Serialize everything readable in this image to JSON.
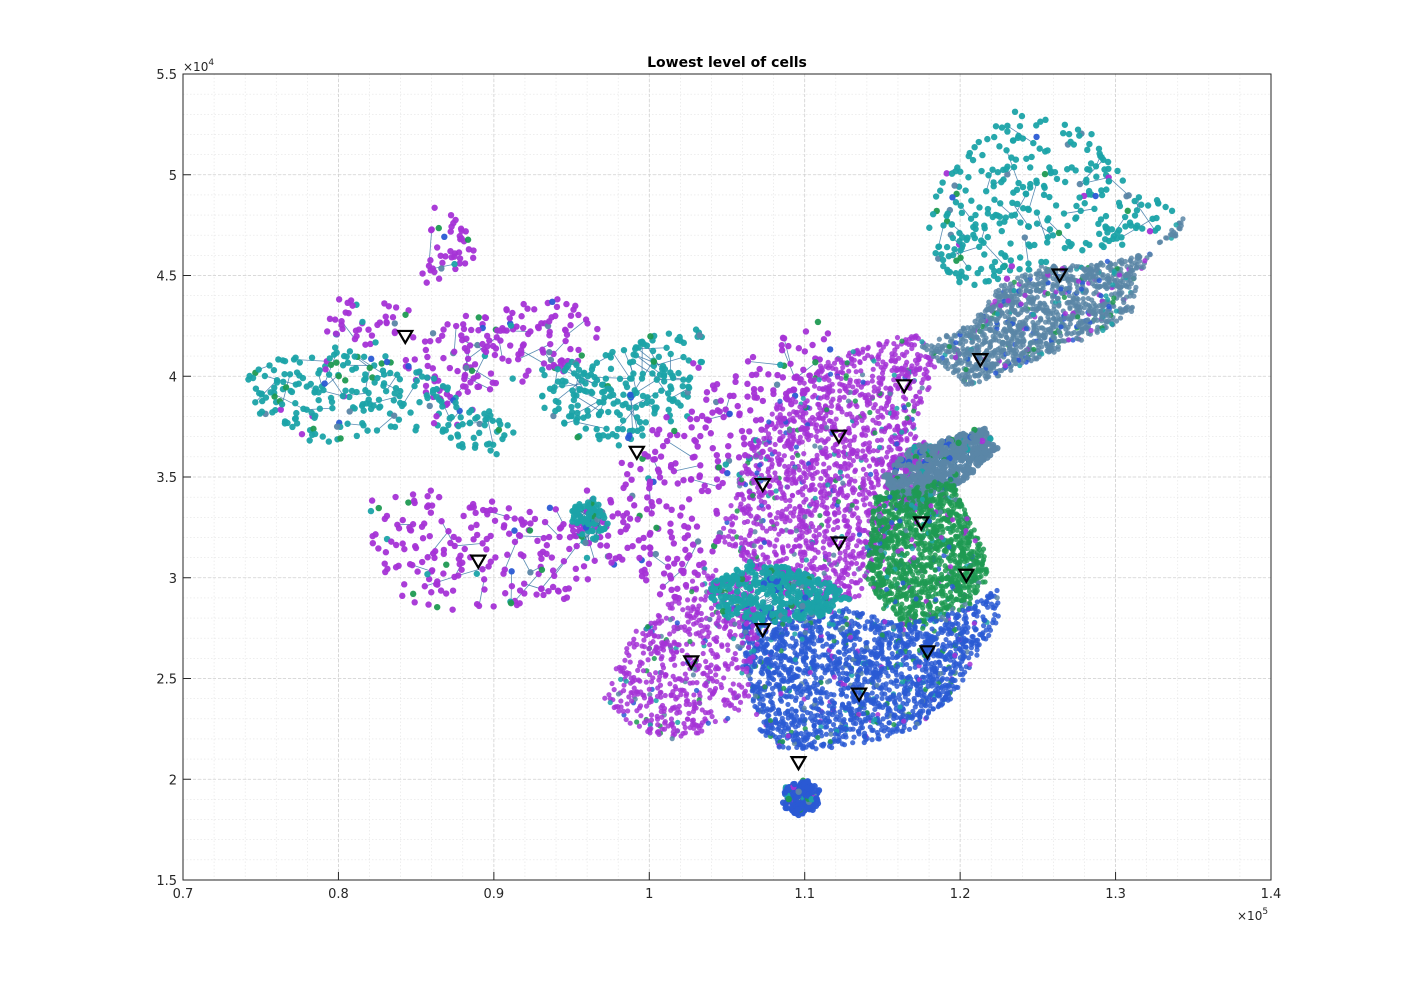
{
  "chart_data": {
    "type": "scatter",
    "title": "Lowest level of cells",
    "xlabel": "",
    "ylabel": "",
    "xlim": [
      70000,
      140000
    ],
    "ylim": [
      15000,
      55000
    ],
    "x_ticks": [
      70000,
      80000,
      90000,
      100000,
      110000,
      120000,
      130000,
      140000
    ],
    "x_tick_labels": [
      "0.7",
      "0.8",
      "0.9",
      "1",
      "1.1",
      "1.2",
      "1.3",
      "1.4"
    ],
    "y_ticks": [
      15000,
      20000,
      25000,
      30000,
      35000,
      40000,
      45000,
      50000,
      55000
    ],
    "y_tick_labels": [
      "1.5",
      "2",
      "2.5",
      "3",
      "3.5",
      "4",
      "4.5",
      "5",
      "5.5"
    ],
    "x_multiplier": {
      "base": "×10",
      "exp": "5"
    },
    "y_multiplier": {
      "base": "×10",
      "exp": "4"
    },
    "grid": true,
    "minor_grid": true,
    "legend": "none",
    "colors": {
      "magenta": "#a533d6",
      "teal": "#1ba3a8",
      "blue": "#2a5ad4",
      "green": "#1f9a52",
      "slate": "#5b86a6",
      "marker": "#000000"
    },
    "regions": [
      {
        "color_key": "magenta",
        "seed": 11,
        "count": 260,
        "poly": [
          [
            86000,
            48400
          ],
          [
            88000,
            48000
          ],
          [
            89000,
            46000
          ],
          [
            87000,
            45000
          ],
          [
            84000,
            43500
          ],
          [
            80000,
            44000
          ],
          [
            79000,
            42000
          ],
          [
            82000,
            41500
          ],
          [
            85000,
            42000
          ],
          [
            88000,
            43000
          ],
          [
            91000,
            43500
          ],
          [
            95000,
            44000
          ],
          [
            97000,
            42000
          ],
          [
            94500,
            40000
          ],
          [
            90000,
            39000
          ],
          [
            87000,
            38500
          ],
          [
            84000,
            40000
          ]
        ]
      },
      {
        "color_key": "teal",
        "seed": 12,
        "count": 260,
        "poly": [
          [
            74000,
            40000
          ],
          [
            76000,
            41000
          ],
          [
            80000,
            41500
          ],
          [
            83000,
            41000
          ],
          [
            86000,
            40000
          ],
          [
            89000,
            38500
          ],
          [
            92000,
            37500
          ],
          [
            90000,
            36000
          ],
          [
            87000,
            36500
          ],
          [
            84000,
            37500
          ],
          [
            81000,
            37000
          ],
          [
            78000,
            36500
          ],
          [
            75000,
            38000
          ]
        ]
      },
      {
        "color_key": "magenta",
        "seed": 13,
        "count": 240,
        "poly": [
          [
            82000,
            34000
          ],
          [
            85000,
            34500
          ],
          [
            89000,
            34000
          ],
          [
            93000,
            33500
          ],
          [
            97000,
            35000
          ],
          [
            99000,
            33000
          ],
          [
            98500,
            31000
          ],
          [
            95000,
            29000
          ],
          [
            91000,
            28500
          ],
          [
            87000,
            28000
          ],
          [
            84000,
            29000
          ],
          [
            82000,
            31500
          ]
        ]
      },
      {
        "color_key": "teal",
        "seed": 14,
        "count": 220,
        "poly": [
          [
            93000,
            40500
          ],
          [
            97000,
            41000
          ],
          [
            100000,
            42000
          ],
          [
            104000,
            42500
          ],
          [
            103000,
            39500
          ],
          [
            101000,
            37500
          ],
          [
            98000,
            36500
          ],
          [
            95000,
            37000
          ],
          [
            93000,
            38500
          ]
        ]
      },
      {
        "color_key": "magenta",
        "seed": 15,
        "count": 260,
        "poly": [
          [
            98000,
            36000
          ],
          [
            101000,
            38000
          ],
          [
            104000,
            39500
          ],
          [
            107500,
            41500
          ],
          [
            111000,
            43000
          ],
          [
            112000,
            41500
          ],
          [
            110000,
            39000
          ],
          [
            108000,
            37000
          ],
          [
            106000,
            34500
          ],
          [
            104000,
            31000
          ],
          [
            101500,
            28500
          ],
          [
            99000,
            30500
          ],
          [
            98500,
            33500
          ]
        ]
      },
      {
        "color_key": "magenta",
        "seed": 16,
        "count": 1700,
        "poly": [
          [
            104500,
            32000
          ],
          [
            106500,
            36500
          ],
          [
            108500,
            39000
          ],
          [
            111500,
            40800
          ],
          [
            114000,
            41500
          ],
          [
            117000,
            42200
          ],
          [
            118500,
            41000
          ],
          [
            118000,
            39000
          ],
          [
            117000,
            37500
          ],
          [
            118500,
            35800
          ],
          [
            116500,
            33500
          ],
          [
            114800,
            31500
          ],
          [
            113500,
            29000
          ],
          [
            110500,
            28800
          ],
          [
            107500,
            30000
          ]
        ]
      },
      {
        "color_key": "slate",
        "seed": 17,
        "count": 1300,
        "poly": [
          [
            117500,
            41500
          ],
          [
            120500,
            42500
          ],
          [
            122500,
            44500
          ],
          [
            125000,
            45500
          ],
          [
            128000,
            45500
          ],
          [
            131500,
            46000
          ],
          [
            134000,
            47000
          ],
          [
            134500,
            48000
          ],
          [
            133000,
            47000
          ],
          [
            131500,
            45000
          ],
          [
            131000,
            43000
          ],
          [
            128500,
            42000
          ],
          [
            125500,
            41000
          ],
          [
            122500,
            40000
          ],
          [
            120500,
            39500
          ],
          [
            119000,
            40500
          ]
        ]
      },
      {
        "color_key": "teal",
        "seed": 18,
        "count": 320,
        "poly": [
          [
            119000,
            50000
          ],
          [
            121000,
            52000
          ],
          [
            123500,
            53300
          ],
          [
            126000,
            53200
          ],
          [
            128500,
            52000
          ],
          [
            130500,
            50000
          ],
          [
            132500,
            49000
          ],
          [
            134500,
            48000
          ],
          [
            131000,
            46500
          ],
          [
            127000,
            46000
          ],
          [
            123500,
            45000
          ],
          [
            120500,
            44000
          ],
          [
            118500,
            45500
          ],
          [
            117500,
            48000
          ]
        ]
      },
      {
        "color_key": "slate",
        "seed": 19,
        "count": 520,
        "poly": [
          [
            115000,
            35000
          ],
          [
            117000,
            36500
          ],
          [
            119500,
            37000
          ],
          [
            121500,
            37500
          ],
          [
            122500,
            36500
          ],
          [
            120500,
            35000
          ],
          [
            118500,
            34000
          ],
          [
            116500,
            33000
          ]
        ]
      },
      {
        "color_key": "green",
        "seed": 20,
        "count": 1300,
        "poly": [
          [
            114500,
            34000
          ],
          [
            117000,
            34500
          ],
          [
            119500,
            35000
          ],
          [
            120500,
            33000
          ],
          [
            121500,
            31500
          ],
          [
            121800,
            30000
          ],
          [
            120500,
            28500
          ],
          [
            118500,
            28000
          ],
          [
            116500,
            27500
          ],
          [
            115000,
            28500
          ],
          [
            114000,
            30000
          ],
          [
            114200,
            32000
          ]
        ]
      },
      {
        "color_key": "blue",
        "seed": 21,
        "count": 2000,
        "poly": [
          [
            106000,
            28800
          ],
          [
            108500,
            28500
          ],
          [
            111000,
            28800
          ],
          [
            113500,
            28300
          ],
          [
            116000,
            27800
          ],
          [
            118500,
            28000
          ],
          [
            120500,
            28500
          ],
          [
            122500,
            29500
          ],
          [
            122500,
            28000
          ],
          [
            121000,
            26000
          ],
          [
            119500,
            24000
          ],
          [
            117000,
            22500
          ],
          [
            114000,
            21800
          ],
          [
            111000,
            21500
          ],
          [
            108500,
            21500
          ],
          [
            107000,
            22500
          ],
          [
            106500,
            24500
          ],
          [
            106000,
            26500
          ]
        ]
      },
      {
        "color_key": "magenta",
        "seed": 22,
        "count": 620,
        "poly": [
          [
            97000,
            24000
          ],
          [
            98500,
            27000
          ],
          [
            101000,
            28500
          ],
          [
            103500,
            30500
          ],
          [
            106500,
            30000
          ],
          [
            107000,
            27000
          ],
          [
            106500,
            24000
          ],
          [
            104500,
            22500
          ],
          [
            101500,
            22000
          ],
          [
            99000,
            22500
          ]
        ]
      },
      {
        "color_key": "teal",
        "seed": 23,
        "count": 380,
        "poly": [
          [
            103500,
            29500
          ],
          [
            106500,
            30800
          ],
          [
            109000,
            30500
          ],
          [
            111500,
            29800
          ],
          [
            113000,
            29000
          ],
          [
            111000,
            28000
          ],
          [
            108000,
            27800
          ],
          [
            105000,
            28000
          ]
        ]
      },
      {
        "color_key": "blue",
        "seed": 24,
        "count": 160,
        "poly": [
          [
            108500,
            19500
          ],
          [
            110000,
            20000
          ],
          [
            111000,
            19500
          ],
          [
            110800,
            18500
          ],
          [
            109500,
            18200
          ],
          [
            108500,
            18700
          ]
        ]
      },
      {
        "color_key": "teal",
        "seed": 25,
        "count": 80,
        "poly": [
          [
            95000,
            33500
          ],
          [
            96500,
            34000
          ],
          [
            97500,
            32500
          ],
          [
            96000,
            31500
          ],
          [
            95000,
            32500
          ]
        ]
      }
    ],
    "markers": [
      {
        "x": 84300,
        "y": 41950
      },
      {
        "x": 89000,
        "y": 30800
      },
      {
        "x": 99200,
        "y": 36200
      },
      {
        "x": 102700,
        "y": 25800
      },
      {
        "x": 107300,
        "y": 34600
      },
      {
        "x": 107300,
        "y": 27400
      },
      {
        "x": 112200,
        "y": 37000
      },
      {
        "x": 112200,
        "y": 31700
      },
      {
        "x": 113500,
        "y": 24200
      },
      {
        "x": 109600,
        "y": 20800
      },
      {
        "x": 116400,
        "y": 39500
      },
      {
        "x": 117500,
        "y": 32700
      },
      {
        "x": 117900,
        "y": 26300
      },
      {
        "x": 120400,
        "y": 30100
      },
      {
        "x": 121300,
        "y": 40800
      },
      {
        "x": 126400,
        "y": 45000
      }
    ]
  }
}
